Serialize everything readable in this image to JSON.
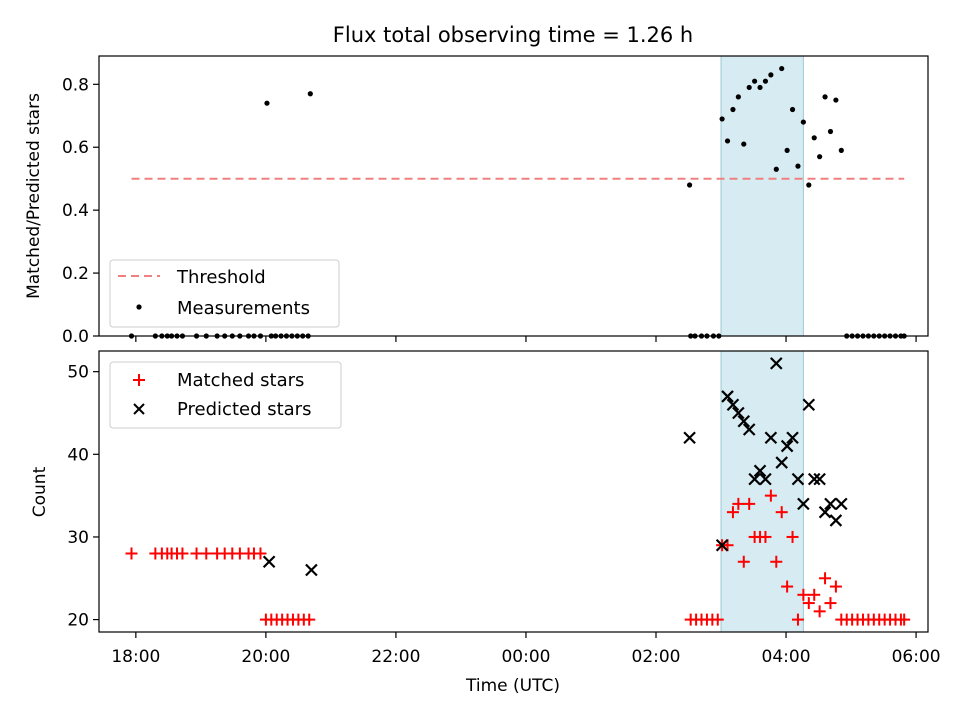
{
  "title": "Flux total observing time = 1.26 h",
  "xlabel": "Time (UTC)",
  "x_ticks": [
    "18:00",
    "20:00",
    "22:00",
    "00:00",
    "02:00",
    "04:00",
    "06:00"
  ],
  "x_range": [
    "17:26",
    "06:11"
  ],
  "highlight_span": [
    "03:00",
    "04:16"
  ],
  "colors": {
    "threshold": "#f08080",
    "highlight": "#add8e6",
    "matched": "#ff0000",
    "predicted": "#000000",
    "measurement": "#000000"
  },
  "chart_data": [
    {
      "type": "scatter",
      "ylabel": "Matched/Predicted stars",
      "ylim": [
        0,
        0.89
      ],
      "y_ticks": [
        "0.0",
        "0.2",
        "0.4",
        "0.6",
        "0.8"
      ],
      "legend": {
        "placement": "lower-left",
        "threshold_label": "Threshold",
        "measurements_label": "Measurements"
      },
      "threshold": {
        "value": 0.5,
        "x_start": "17:56",
        "x_end": "05:49"
      },
      "measurements": [
        [
          "17:56",
          0
        ],
        [
          "18:18",
          0
        ],
        [
          "18:24",
          0
        ],
        [
          "18:29",
          0
        ],
        [
          "18:33",
          0
        ],
        [
          "18:38",
          0
        ],
        [
          "18:43",
          0
        ],
        [
          "18:56",
          0
        ],
        [
          "19:05",
          0
        ],
        [
          "19:15",
          0
        ],
        [
          "19:22",
          0
        ],
        [
          "19:29",
          0
        ],
        [
          "19:36",
          0
        ],
        [
          "19:44",
          0
        ],
        [
          "19:49",
          0
        ],
        [
          "19:55",
          0
        ],
        [
          "20:01",
          0.74
        ],
        [
          "20:05",
          0
        ],
        [
          "20:09",
          0
        ],
        [
          "20:14",
          0
        ],
        [
          "20:19",
          0
        ],
        [
          "20:24",
          0
        ],
        [
          "20:29",
          0
        ],
        [
          "20:34",
          0
        ],
        [
          "20:39",
          0
        ],
        [
          "20:41",
          0.77
        ],
        [
          "02:32",
          0
        ],
        [
          "02:36",
          0
        ],
        [
          "02:31",
          0.48
        ],
        [
          "02:42",
          0
        ],
        [
          "02:47",
          0
        ],
        [
          "02:53",
          0
        ],
        [
          "02:58",
          0
        ],
        [
          "03:01",
          0.69
        ],
        [
          "03:06",
          0.62
        ],
        [
          "03:11",
          0.72
        ],
        [
          "03:16",
          0.76
        ],
        [
          "03:21",
          0.61
        ],
        [
          "03:26",
          0.79
        ],
        [
          "03:31",
          0.81
        ],
        [
          "03:36",
          0.79
        ],
        [
          "03:41",
          0.81
        ],
        [
          "03:46",
          0.83
        ],
        [
          "03:51",
          0.53
        ],
        [
          "03:56",
          0.85
        ],
        [
          "04:01",
          0.59
        ],
        [
          "04:06",
          0.72
        ],
        [
          "04:11",
          0.54
        ],
        [
          "04:16",
          0.68
        ],
        [
          "04:21",
          0.48
        ],
        [
          "04:26",
          0.63
        ],
        [
          "04:31",
          0.57
        ],
        [
          "04:36",
          0.76
        ],
        [
          "04:41",
          0.65
        ],
        [
          "04:46",
          0.75
        ],
        [
          "04:51",
          0.59
        ],
        [
          "04:56",
          0
        ],
        [
          "05:01",
          0
        ],
        [
          "05:06",
          0
        ],
        [
          "05:11",
          0
        ],
        [
          "05:16",
          0
        ],
        [
          "05:21",
          0
        ],
        [
          "05:26",
          0
        ],
        [
          "05:31",
          0
        ],
        [
          "05:36",
          0
        ],
        [
          "05:41",
          0
        ],
        [
          "05:46",
          0
        ],
        [
          "05:49",
          0
        ]
      ]
    },
    {
      "type": "scatter",
      "ylabel": "Count",
      "ylim": [
        18.5,
        52.5
      ],
      "y_ticks": [
        "20",
        "30",
        "40",
        "50"
      ],
      "legend": {
        "placement": "top-left",
        "matched_label": "Matched stars",
        "predicted_label": "Predicted stars"
      },
      "matched": [
        [
          "17:56",
          28
        ],
        [
          "18:18",
          28
        ],
        [
          "18:24",
          28
        ],
        [
          "18:29",
          28
        ],
        [
          "18:33",
          28
        ],
        [
          "18:38",
          28
        ],
        [
          "18:43",
          28
        ],
        [
          "18:56",
          28
        ],
        [
          "19:05",
          28
        ],
        [
          "19:15",
          28
        ],
        [
          "19:22",
          28
        ],
        [
          "19:29",
          28
        ],
        [
          "19:36",
          28
        ],
        [
          "19:44",
          28
        ],
        [
          "19:49",
          28
        ],
        [
          "19:55",
          28
        ],
        [
          "20:00",
          20
        ],
        [
          "20:05",
          20
        ],
        [
          "20:10",
          20
        ],
        [
          "20:15",
          20
        ],
        [
          "20:20",
          20
        ],
        [
          "20:25",
          20
        ],
        [
          "20:30",
          20
        ],
        [
          "20:35",
          20
        ],
        [
          "20:40",
          20
        ],
        [
          "02:32",
          20
        ],
        [
          "02:37",
          20
        ],
        [
          "02:42",
          20
        ],
        [
          "02:47",
          20
        ],
        [
          "02:52",
          20
        ],
        [
          "02:57",
          20
        ],
        [
          "03:01",
          29
        ],
        [
          "03:06",
          29
        ],
        [
          "03:11",
          33
        ],
        [
          "03:16",
          34
        ],
        [
          "03:21",
          27
        ],
        [
          "03:26",
          34
        ],
        [
          "03:31",
          30
        ],
        [
          "03:36",
          30
        ],
        [
          "03:41",
          30
        ],
        [
          "03:46",
          35
        ],
        [
          "03:51",
          27
        ],
        [
          "03:56",
          33
        ],
        [
          "04:01",
          24
        ],
        [
          "04:06",
          30
        ],
        [
          "04:11",
          20
        ],
        [
          "04:16",
          23
        ],
        [
          "04:21",
          22
        ],
        [
          "04:26",
          23
        ],
        [
          "04:31",
          21
        ],
        [
          "04:36",
          25
        ],
        [
          "04:41",
          22
        ],
        [
          "04:46",
          24
        ],
        [
          "04:51",
          20
        ],
        [
          "04:56",
          20
        ],
        [
          "05:01",
          20
        ],
        [
          "05:06",
          20
        ],
        [
          "05:11",
          20
        ],
        [
          "05:16",
          20
        ],
        [
          "05:21",
          20
        ],
        [
          "05:26",
          20
        ],
        [
          "05:31",
          20
        ],
        [
          "05:36",
          20
        ],
        [
          "05:41",
          20
        ],
        [
          "05:46",
          20
        ],
        [
          "05:49",
          20
        ]
      ],
      "predicted": [
        [
          "20:03",
          27
        ],
        [
          "20:42",
          26
        ],
        [
          "02:31",
          42
        ],
        [
          "03:01",
          29
        ],
        [
          "03:06",
          47
        ],
        [
          "03:11",
          46
        ],
        [
          "03:16",
          45
        ],
        [
          "03:21",
          44
        ],
        [
          "03:26",
          43
        ],
        [
          "03:31",
          37
        ],
        [
          "03:36",
          38
        ],
        [
          "03:41",
          37
        ],
        [
          "03:46",
          42
        ],
        [
          "03:51",
          51
        ],
        [
          "03:56",
          39
        ],
        [
          "04:01",
          41
        ],
        [
          "04:06",
          42
        ],
        [
          "04:11",
          37
        ],
        [
          "04:16",
          34
        ],
        [
          "04:21",
          46
        ],
        [
          "04:26",
          37
        ],
        [
          "04:31",
          37
        ],
        [
          "04:36",
          33
        ],
        [
          "04:41",
          34
        ],
        [
          "04:46",
          32
        ],
        [
          "04:51",
          34
        ]
      ]
    }
  ]
}
